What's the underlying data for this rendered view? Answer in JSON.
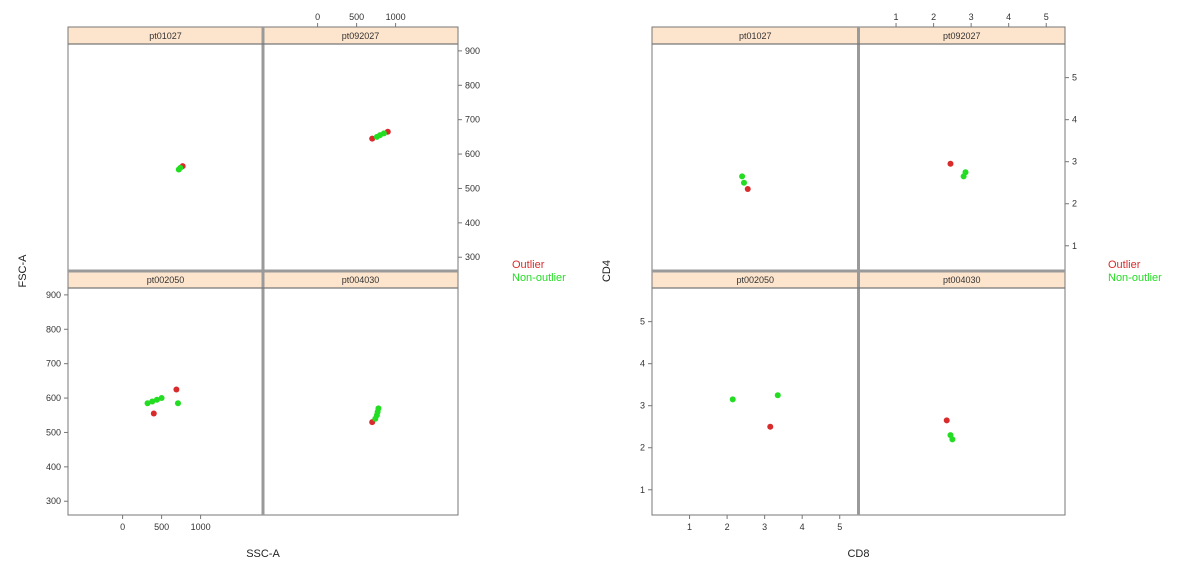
{
  "colors": {
    "outlier": "#d92b2b",
    "non_outlier": "#22dd22",
    "strip": "#fde4cc",
    "frame": "#777777",
    "divider": "#9a9a9a"
  },
  "legend": [
    {
      "key": "outlier",
      "label": "Outlier"
    },
    {
      "key": "non_outlier",
      "label": "Non-outlier"
    }
  ],
  "chart_data": [
    {
      "type": "scatter",
      "layout": "2x2 lattice",
      "xlabel": "SSC-A",
      "ylabel": "FSC-A",
      "xlim": [
        -700,
        1800
      ],
      "ylim": [
        260,
        920
      ],
      "x_ticks": [
        0,
        500,
        1000
      ],
      "x_tick_labels": [
        "0",
        "500",
        "1000"
      ],
      "y_ticks": [
        300,
        400,
        500,
        600,
        700,
        800,
        900
      ],
      "y_tick_labels": [
        "300",
        "400",
        "500",
        "600",
        "700",
        "800",
        "900"
      ],
      "panels": [
        {
          "name": "pt01027",
          "row": 0,
          "col": 0,
          "points": [
            {
              "x": 770,
              "y": 565,
              "group": "outlier"
            },
            {
              "x": 720,
              "y": 555,
              "group": "non_outlier"
            },
            {
              "x": 740,
              "y": 560,
              "group": "non_outlier"
            }
          ]
        },
        {
          "name": "pt092027",
          "row": 0,
          "col": 1,
          "points": [
            {
              "x": 700,
              "y": 645,
              "group": "outlier"
            },
            {
              "x": 900,
              "y": 665,
              "group": "outlier"
            },
            {
              "x": 760,
              "y": 650,
              "group": "non_outlier"
            },
            {
              "x": 800,
              "y": 655,
              "group": "non_outlier"
            },
            {
              "x": 850,
              "y": 660,
              "group": "non_outlier"
            }
          ]
        },
        {
          "name": "pt002050",
          "row": 1,
          "col": 0,
          "points": [
            {
              "x": 400,
              "y": 555,
              "group": "outlier"
            },
            {
              "x": 690,
              "y": 625,
              "group": "outlier"
            },
            {
              "x": 320,
              "y": 585,
              "group": "non_outlier"
            },
            {
              "x": 380,
              "y": 590,
              "group": "non_outlier"
            },
            {
              "x": 440,
              "y": 595,
              "group": "non_outlier"
            },
            {
              "x": 500,
              "y": 600,
              "group": "non_outlier"
            },
            {
              "x": 710,
              "y": 585,
              "group": "non_outlier"
            }
          ]
        },
        {
          "name": "pt004030",
          "row": 1,
          "col": 1,
          "points": [
            {
              "x": 700,
              "y": 530,
              "group": "outlier"
            },
            {
              "x": 740,
              "y": 540,
              "group": "non_outlier"
            },
            {
              "x": 760,
              "y": 550,
              "group": "non_outlier"
            },
            {
              "x": 770,
              "y": 560,
              "group": "non_outlier"
            },
            {
              "x": 780,
              "y": 570,
              "group": "non_outlier"
            }
          ]
        }
      ]
    },
    {
      "type": "scatter",
      "layout": "2x2 lattice",
      "xlabel": "CD8",
      "ylabel": "CD4",
      "xlim": [
        0,
        5.5
      ],
      "ylim": [
        0.4,
        5.8
      ],
      "x_ticks": [
        1,
        2,
        3,
        4,
        5
      ],
      "x_tick_labels": [
        "1",
        "2",
        "3",
        "4",
        "5"
      ],
      "y_ticks": [
        1,
        2,
        3,
        4,
        5
      ],
      "y_tick_labels": [
        "1",
        "2",
        "3",
        "4",
        "5"
      ],
      "panels": [
        {
          "name": "pt01027",
          "row": 0,
          "col": 0,
          "points": [
            {
              "x": 2.55,
              "y": 2.35,
              "group": "outlier"
            },
            {
              "x": 2.4,
              "y": 2.65,
              "group": "non_outlier"
            },
            {
              "x": 2.45,
              "y": 2.5,
              "group": "non_outlier"
            }
          ]
        },
        {
          "name": "pt092027",
          "row": 0,
          "col": 1,
          "points": [
            {
              "x": 2.45,
              "y": 2.95,
              "group": "outlier"
            },
            {
              "x": 2.8,
              "y": 2.65,
              "group": "non_outlier"
            },
            {
              "x": 2.85,
              "y": 2.75,
              "group": "non_outlier"
            }
          ]
        },
        {
          "name": "pt002050",
          "row": 1,
          "col": 0,
          "points": [
            {
              "x": 3.15,
              "y": 2.5,
              "group": "outlier"
            },
            {
              "x": 2.15,
              "y": 3.15,
              "group": "non_outlier"
            },
            {
              "x": 3.35,
              "y": 3.25,
              "group": "non_outlier"
            }
          ]
        },
        {
          "name": "pt004030",
          "row": 1,
          "col": 1,
          "points": [
            {
              "x": 2.35,
              "y": 2.65,
              "group": "outlier"
            },
            {
              "x": 2.45,
              "y": 2.3,
              "group": "non_outlier"
            },
            {
              "x": 2.5,
              "y": 2.2,
              "group": "non_outlier"
            }
          ]
        }
      ]
    }
  ]
}
